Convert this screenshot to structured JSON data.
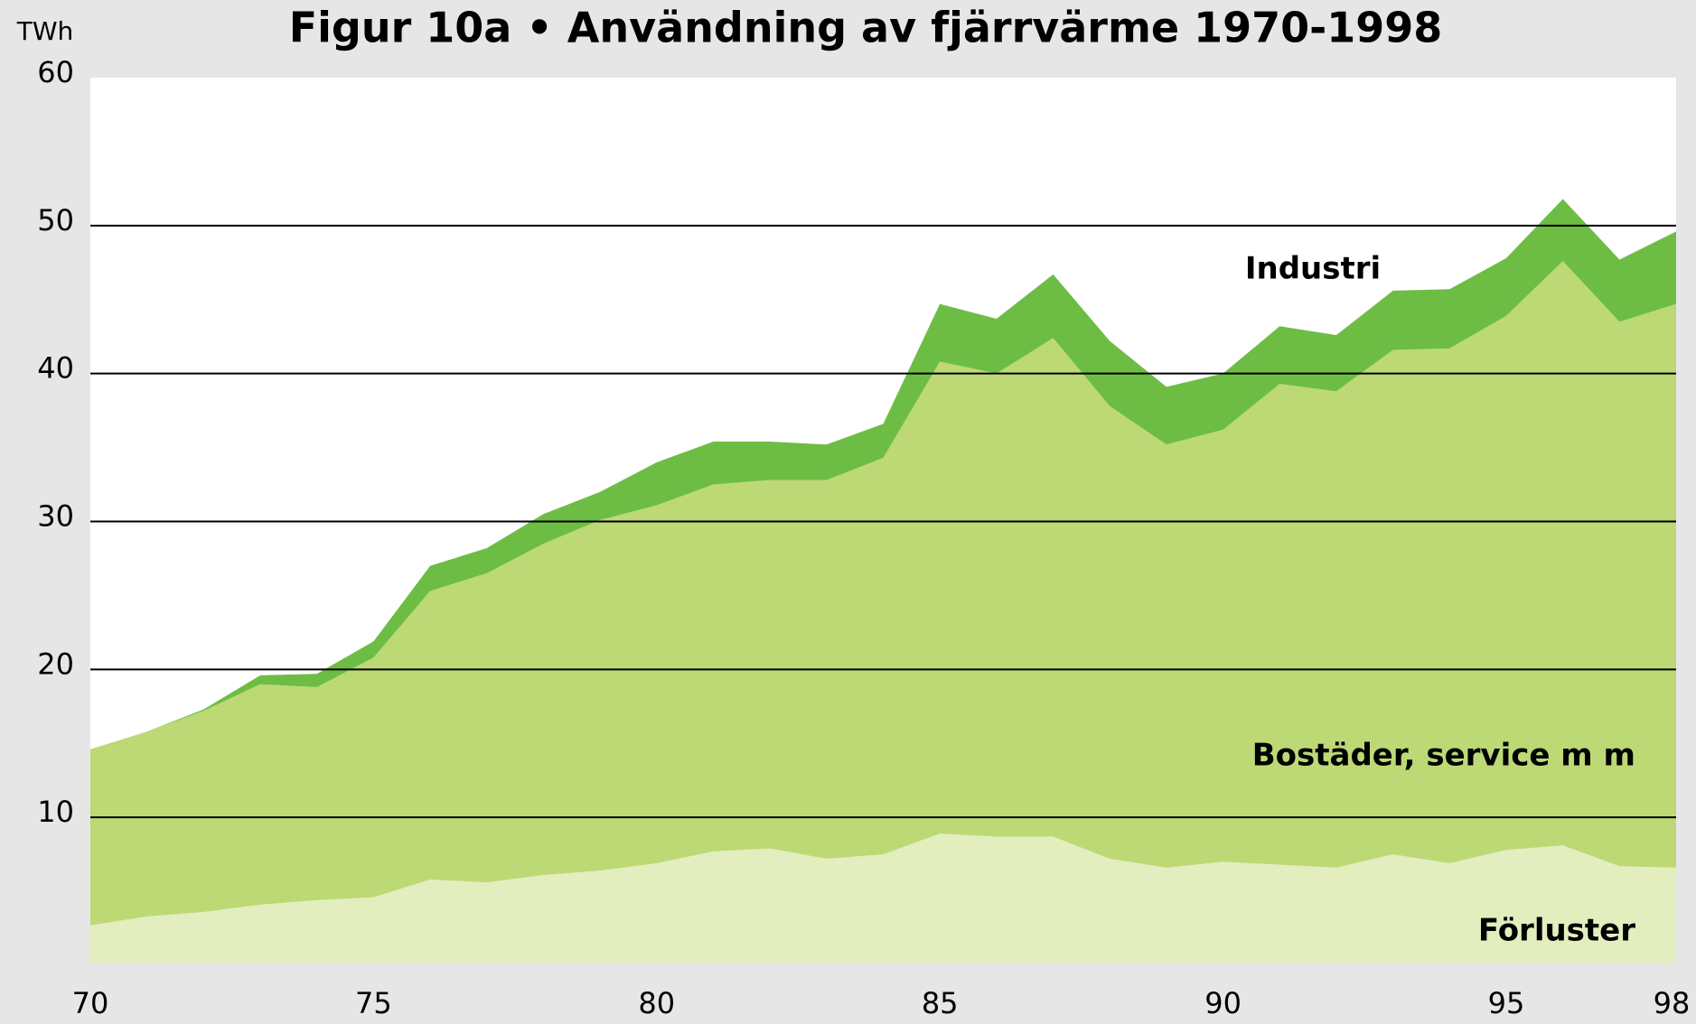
{
  "chart_data": {
    "type": "stacked_area",
    "title": "Figur 10a • Användning av fjärrvärme 1970-1998",
    "y_label": "TWh",
    "x": [
      70,
      71,
      72,
      73,
      74,
      75,
      76,
      77,
      78,
      79,
      80,
      81,
      82,
      83,
      84,
      85,
      86,
      87,
      88,
      89,
      90,
      91,
      92,
      93,
      94,
      95,
      96,
      97,
      98
    ],
    "series": [
      {
        "name": "Förluster",
        "color": "#e3eebf",
        "values": [
          2.7,
          3.3,
          3.6,
          4.1,
          4.4,
          4.6,
          5.8,
          5.6,
          6.1,
          6.4,
          6.9,
          7.7,
          7.9,
          7.2,
          7.5,
          8.9,
          8.7,
          8.7,
          7.2,
          6.6,
          7.0,
          6.8,
          6.6,
          7.5,
          6.9,
          7.8,
          8.1,
          6.7,
          6.6
        ]
      },
      {
        "name": "Bostäder, service m m",
        "color": "#bcd975",
        "values": [
          11.9,
          12.5,
          13.6,
          14.9,
          14.4,
          16.2,
          19.5,
          20.9,
          22.4,
          23.7,
          24.2,
          24.8,
          24.9,
          25.6,
          26.8,
          31.9,
          31.3,
          33.7,
          30.6,
          28.6,
          29.2,
          32.5,
          32.2,
          34.1,
          34.8,
          36.1,
          39.5,
          36.8,
          38.1
        ]
      },
      {
        "name": "Industri",
        "color": "#6dbd45",
        "values": [
          0,
          0,
          0.1,
          0.6,
          0.9,
          1.1,
          1.7,
          1.7,
          2.0,
          1.9,
          2.9,
          2.9,
          2.6,
          2.4,
          2.3,
          3.9,
          3.7,
          4.3,
          4.4,
          3.9,
          3.8,
          3.9,
          3.8,
          4.0,
          4.0,
          3.9,
          4.2,
          4.2,
          4.9
        ]
      }
    ],
    "xlim": [
      70,
      98
    ],
    "xticks": [
      70,
      75,
      80,
      85,
      90,
      95,
      98
    ],
    "ylim": [
      0,
      60
    ],
    "yticks": [
      10,
      20,
      30,
      40,
      50,
      60
    ],
    "grid": true
  }
}
